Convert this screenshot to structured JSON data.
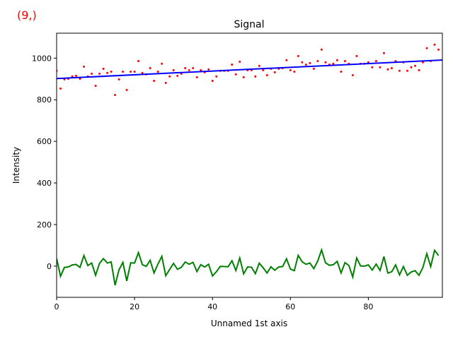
{
  "corner_label": "(9,)",
  "chart_data": {
    "type": "line",
    "title": "Signal",
    "xlabel": "Unnamed 1st axis",
    "ylabel": "Intensity",
    "xlim": [
      0,
      99
    ],
    "ylim": [
      -150,
      1120
    ],
    "xticks": [
      0,
      20,
      40,
      60,
      80
    ],
    "yticks": [
      0,
      200,
      400,
      600,
      800,
      1000
    ],
    "grid": false,
    "series": [
      {
        "kind": "scatter",
        "color": "#ff0000",
        "values": [
          939,
          854,
          898,
          901,
          912,
          915,
          901,
          959,
          912,
          925,
          867,
          925,
          949,
          929,
          935,
          823,
          898,
          935,
          847,
          935,
          935,
          986,
          929,
          922,
          952,
          891,
          935,
          973,
          881,
          912,
          942,
          915,
          925,
          952,
          942,
          952,
          908,
          942,
          932,
          946,
          891,
          912,
          939,
          939,
          939,
          969,
          922,
          983,
          908,
          942,
          942,
          912,
          963,
          942,
          918,
          949,
          932,
          949,
          952,
          990,
          942,
          935,
          1010,
          980,
          969,
          976,
          949,
          986,
          1041,
          980,
          969,
          973,
          990,
          935,
          986,
          973,
          918,
          1010,
          973,
          973,
          980,
          956,
          986,
          956,
          1024,
          946,
          952,
          986,
          939,
          980,
          939,
          956,
          963,
          942,
          980,
          1048,
          986,
          1065,
          1041
        ]
      },
      {
        "kind": "fit-line",
        "color": "#0000ff",
        "x": [
          0,
          99
        ],
        "values": [
          902,
          991
        ]
      },
      {
        "kind": "line",
        "color": "#008000",
        "values": [
          37,
          -49,
          -6,
          -4,
          6,
          8,
          -6,
          51,
          3,
          15,
          -44,
          13,
          36,
          15,
          20,
          -92,
          -18,
          18,
          -71,
          16,
          15,
          65,
          7,
          -1,
          28,
          -33,
          10,
          47,
          -46,
          -16,
          13,
          -15,
          -6,
          20,
          9,
          18,
          -26,
          7,
          -4,
          9,
          -47,
          -27,
          -1,
          -2,
          -3,
          26,
          -21,
          39,
          -37,
          -4,
          -5,
          -36,
          14,
          -8,
          -33,
          -3,
          -20,
          -4,
          -2,
          35,
          -14,
          -22,
          52,
          21,
          9,
          15,
          -12,
          24,
          78,
          16,
          4,
          7,
          23,
          -33,
          17,
          3,
          -52,
          39,
          1,
          0,
          6,
          -19,
          10,
          -21,
          46,
          -33,
          -27,
          6,
          -42,
          -2,
          -44,
          -28,
          -22,
          -44,
          -6,
          60,
          -2,
          76,
          51
        ]
      }
    ]
  }
}
